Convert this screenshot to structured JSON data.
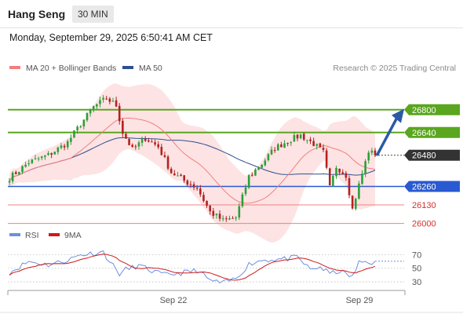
{
  "header": {
    "instrument": "Hang Seng",
    "timeframe": "30 MIN",
    "datetime": "Monday, September 29, 2025 6:50:41 AM CET"
  },
  "colors": {
    "up": "#2e9e3a",
    "down": "#b22222",
    "ma20": "#f08080",
    "ma50": "#2f4f8f",
    "band": "#fcd9d9",
    "resistance": "#5aa61e",
    "support": "#2a5ad1",
    "minor_support": "#f08080",
    "arrow": "#2a5aa6",
    "rsi": "#6d8fe0",
    "rsi_ma": "#d01818",
    "last_price": "#333333"
  },
  "chart_data": [
    {
      "type": "line",
      "title": "",
      "subtitle": "",
      "legend": [
        {
          "label": "MA 20 + Bollinger Bands",
          "color": "#f08080"
        },
        {
          "label": "MA 50",
          "color": "#2f4f8f"
        }
      ],
      "credit": "Research © 2025 Trading Central",
      "x_ticks": [
        "Sep 22",
        "Sep 29"
      ],
      "ylim": [
        25970,
        27020
      ],
      "last_price": 26480,
      "levels": [
        {
          "value": 26800,
          "label": "26800",
          "kind": "resistance"
        },
        {
          "value": 26640,
          "label": "26640",
          "kind": "resistance"
        },
        {
          "value": 26480,
          "label": "26480",
          "kind": "last"
        },
        {
          "value": 26260,
          "label": "26260",
          "kind": "support"
        },
        {
          "value": 26130,
          "label": "26130",
          "kind": "minor"
        },
        {
          "value": 26000,
          "label": "26000",
          "kind": "minor"
        }
      ],
      "anchors": [
        [
          0,
          26320
        ],
        [
          6,
          26430
        ],
        [
          12,
          26480
        ],
        [
          18,
          26570
        ],
        [
          22,
          26700
        ],
        [
          26,
          26820
        ],
        [
          30,
          26880
        ],
        [
          33,
          26830
        ],
        [
          35,
          26640
        ],
        [
          38,
          26520
        ],
        [
          42,
          26600
        ],
        [
          46,
          26540
        ],
        [
          50,
          26360
        ],
        [
          54,
          26300
        ],
        [
          58,
          26250
        ],
        [
          62,
          26080
        ],
        [
          66,
          26020
        ],
        [
          70,
          26040
        ],
        [
          74,
          26330
        ],
        [
          78,
          26420
        ],
        [
          82,
          26530
        ],
        [
          86,
          26580
        ],
        [
          90,
          26620
        ],
        [
          94,
          26560
        ],
        [
          97,
          26500
        ],
        [
          99,
          26250
        ],
        [
          101,
          26400
        ],
        [
          104,
          26340
        ],
        [
          106,
          26100
        ],
        [
          108,
          26270
        ],
        [
          111,
          26510
        ],
        [
          113,
          26480
        ]
      ],
      "target_arrow": [
        26480,
        26800
      ]
    },
    {
      "type": "line",
      "title": "",
      "legend": [
        {
          "label": "RSI",
          "color": "#6d8fe0"
        },
        {
          "label": "9MA",
          "color": "#d01818"
        }
      ],
      "ylim": [
        22,
        82
      ],
      "y_ticks": [
        70,
        50,
        30
      ],
      "rsi_anchors": [
        [
          0,
          44
        ],
        [
          6,
          60
        ],
        [
          12,
          55
        ],
        [
          18,
          62
        ],
        [
          22,
          70
        ],
        [
          26,
          72
        ],
        [
          29,
          74
        ],
        [
          31,
          60
        ],
        [
          34,
          42
        ],
        [
          36,
          48
        ],
        [
          40,
          54
        ],
        [
          44,
          46
        ],
        [
          48,
          40
        ],
        [
          53,
          43
        ],
        [
          58,
          47
        ],
        [
          62,
          32
        ],
        [
          66,
          28
        ],
        [
          70,
          35
        ],
        [
          74,
          56
        ],
        [
          78,
          62
        ],
        [
          82,
          63
        ],
        [
          86,
          64
        ],
        [
          89,
          66
        ],
        [
          93,
          48
        ],
        [
          96,
          52
        ],
        [
          99,
          42
        ],
        [
          102,
          46
        ],
        [
          106,
          37
        ],
        [
          108,
          58
        ],
        [
          110,
          60
        ],
        [
          113,
          58
        ]
      ]
    }
  ]
}
